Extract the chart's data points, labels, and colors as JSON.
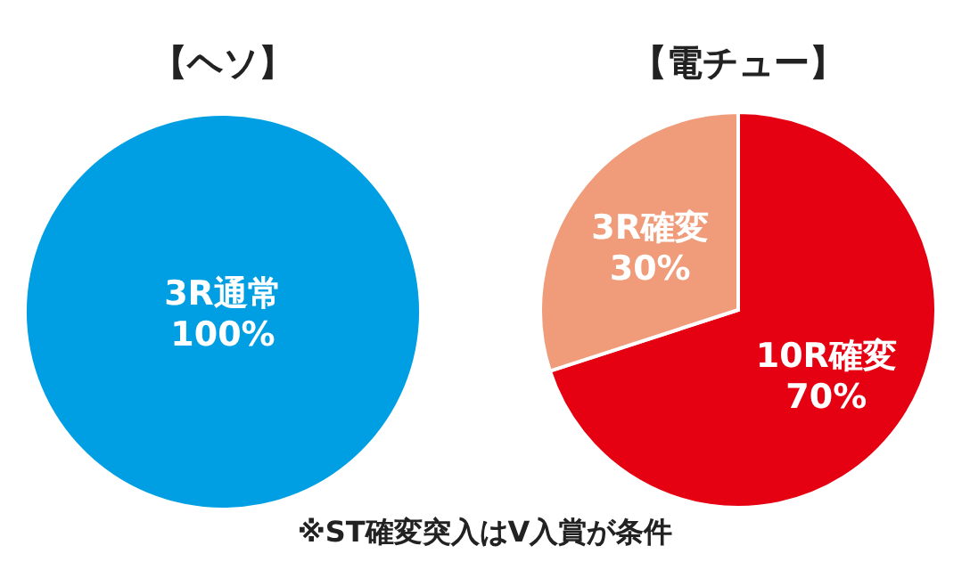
{
  "chart_data": [
    {
      "type": "pie",
      "title": "【ヘソ】",
      "categories": [
        "3R通常"
      ],
      "values": [
        100
      ],
      "colors": [
        "#009fe3"
      ],
      "value_labels": [
        "100%"
      ]
    },
    {
      "type": "pie",
      "title": "【電チュー】",
      "categories": [
        "10R確変",
        "3R確変"
      ],
      "values": [
        70,
        30
      ],
      "colors": [
        "#e50012",
        "#f09b79"
      ],
      "value_labels": [
        "70%",
        "30%"
      ],
      "annotations": [
        "※ST確変突入はV入賞が条件"
      ]
    }
  ]
}
